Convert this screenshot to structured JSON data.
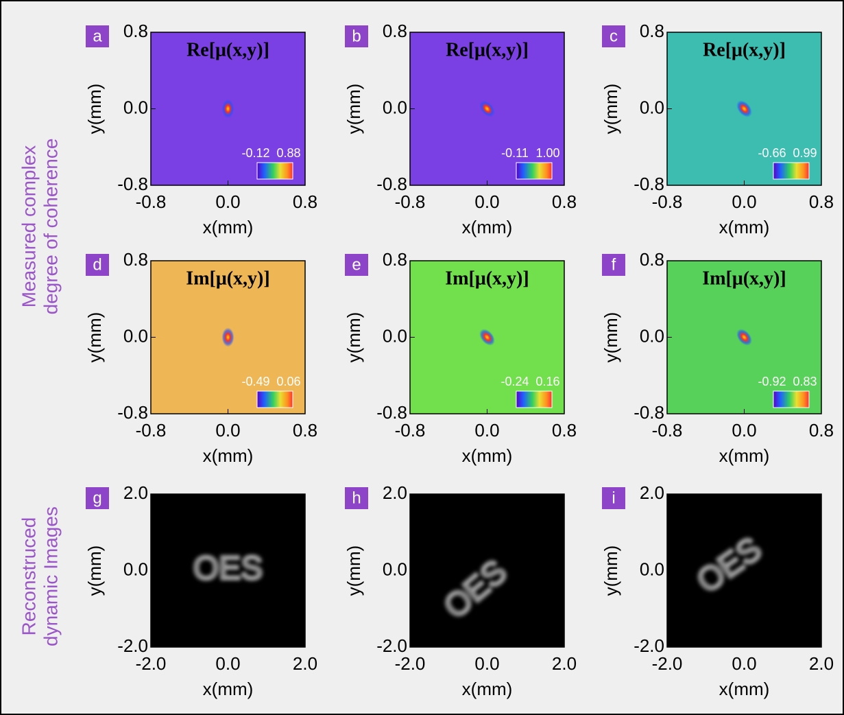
{
  "row_labels": [
    "Measured complex",
    "degree of coherence",
    "Reconstruced",
    "dynamic Images"
  ],
  "chart_data": [
    {
      "type": "heatmap",
      "label": "a",
      "title": "Re[μ(x,y)]",
      "xlabel": "x(mm)",
      "ylabel": "y(mm)",
      "xlim": [
        -0.8,
        0.8
      ],
      "ylim": [
        -0.8,
        0.8
      ],
      "xticks": [
        -0.8,
        {
          "value": 0,
          "label": "0.0"
        },
        0.8
      ],
      "yticks": [
        -0.8,
        {
          "value": 0,
          "label": "0.0"
        },
        0.8
      ],
      "clim": [
        -0.12,
        0.88
      ],
      "color": "#7b40e3"
    },
    {
      "type": "heatmap",
      "label": "b",
      "title": "Re[μ(x,y)]",
      "xlabel": "x(mm)",
      "ylabel": "y(mm)",
      "xlim": [
        -0.8,
        0.8
      ],
      "ylim": [
        -0.8,
        0.8
      ],
      "xticks": [
        -0.8,
        {
          "value": 0,
          "label": "0.0"
        },
        0.8
      ],
      "yticks": [
        -0.8,
        {
          "value": 0,
          "label": "0.0"
        },
        0.8
      ],
      "clim": [
        -0.11,
        {
          "value": 1,
          "label": "1.00"
        }
      ],
      "color": "#7b40e3"
    },
    {
      "type": "heatmap",
      "label": "c",
      "title": "Re[μ(x,y)]",
      "xlabel": "x(mm)",
      "ylabel": "y(mm)",
      "xlim": [
        -0.8,
        0.8
      ],
      "ylim": [
        -0.8,
        0.8
      ],
      "xticks": [
        -0.8,
        {
          "value": 0,
          "label": "0.0"
        },
        0.8
      ],
      "yticks": [
        -0.8,
        {
          "value": 0,
          "label": "0.0"
        },
        0.8
      ],
      "clim": [
        -0.66,
        0.99
      ],
      "color": "#3dbdaf"
    },
    {
      "type": "heatmap",
      "label": "d",
      "title": "Im[μ(x,y)]",
      "xlabel": "x(mm)",
      "ylabel": "y(mm)",
      "xlim": [
        -0.8,
        0.8
      ],
      "ylim": [
        -0.8,
        0.8
      ],
      "xticks": [
        -0.8,
        {
          "value": 0,
          "label": "0.0"
        },
        0.8
      ],
      "yticks": [
        -0.8,
        {
          "value": 0,
          "label": "0.0"
        },
        0.8
      ],
      "clim": [
        -0.49,
        0.06
      ],
      "color": "#efb656"
    },
    {
      "type": "heatmap",
      "label": "e",
      "title": "Im[μ(x,y)]",
      "xlabel": "x(mm)",
      "ylabel": "y(mm)",
      "xlim": [
        -0.8,
        0.8
      ],
      "ylim": [
        -0.8,
        0.8
      ],
      "xticks": [
        -0.8,
        {
          "value": 0,
          "label": "0.0"
        },
        0.8
      ],
      "yticks": [
        -0.8,
        {
          "value": 0,
          "label": "0.0"
        },
        0.8
      ],
      "clim": [
        -0.24,
        0.16
      ],
      "color": "#72e04c"
    },
    {
      "type": "heatmap",
      "label": "f",
      "title": "Im[μ(x,y)]",
      "xlabel": "x(mm)",
      "ylabel": "y(mm)",
      "xlim": [
        -0.8,
        0.8
      ],
      "ylim": [
        -0.8,
        0.8
      ],
      "xticks": [
        -0.8,
        {
          "value": 0,
          "label": "0.0"
        },
        0.8
      ],
      "yticks": [
        -0.8,
        {
          "value": 0,
          "label": "0.0"
        },
        0.8
      ],
      "clim": [
        -0.92,
        0.83
      ],
      "color": "#58d15a"
    },
    {
      "type": "image",
      "label": "g",
      "image_text": "OES",
      "xlabel": "x(mm)",
      "ylabel": "y(mm)",
      "xlim": [
        -2,
        2
      ],
      "ylim": [
        -2,
        2
      ],
      "xticks": [
        {
          "value": -2,
          "label": "-2.0"
        },
        {
          "value": 0,
          "label": "0.0"
        },
        {
          "value": 2,
          "label": "2.0"
        }
      ],
      "yticks": [
        {
          "value": -2,
          "label": "-2.0"
        },
        {
          "value": 0,
          "label": "0.0"
        },
        {
          "value": 2,
          "label": "2.0"
        }
      ],
      "color": "#000000"
    },
    {
      "type": "image",
      "label": "h",
      "image_text": "OES",
      "xlabel": "x(mm)",
      "ylabel": "y(mm)",
      "xlim": [
        -2,
        2
      ],
      "ylim": [
        -2,
        2
      ],
      "xticks": [
        {
          "value": -2,
          "label": "-2.0"
        },
        {
          "value": 0,
          "label": "0.0"
        },
        {
          "value": 2,
          "label": "2.0"
        }
      ],
      "yticks": [
        {
          "value": -2,
          "label": "-2.0"
        },
        {
          "value": 0,
          "label": "0.0"
        },
        {
          "value": 2,
          "label": "2.0"
        }
      ],
      "color": "#000000"
    },
    {
      "type": "image",
      "label": "i",
      "image_text": "OES",
      "xlabel": "x(mm)",
      "ylabel": "y(mm)",
      "xlim": [
        -2,
        2
      ],
      "ylim": [
        -2,
        2
      ],
      "xticks": [
        {
          "value": -2,
          "label": "-2.0"
        },
        {
          "value": 0,
          "label": "0.0"
        },
        {
          "value": 2,
          "label": "2.0"
        }
      ],
      "yticks": [
        {
          "value": -2,
          "label": "-2.0"
        },
        {
          "value": 0,
          "label": "0.0"
        },
        {
          "value": 2,
          "label": "2.0"
        }
      ],
      "color": "#000000"
    }
  ]
}
